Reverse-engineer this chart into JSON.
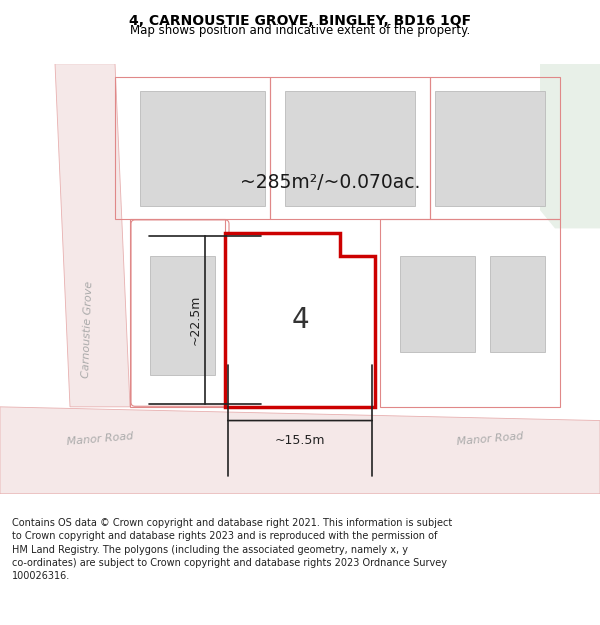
{
  "title": "4, CARNOUSTIE GROVE, BINGLEY, BD16 1QF",
  "subtitle": "Map shows position and indicative extent of the property.",
  "footer": "Contains OS data © Crown copyright and database right 2021. This information is subject to Crown copyright and database rights 2023 and is reproduced with the permission of HM Land Registry. The polygons (including the associated geometry, namely x, y co-ordinates) are subject to Crown copyright and database rights 2023 Ordnance Survey 100026316.",
  "area_text": "~285m²/~0.070ac.",
  "house_number": "4",
  "dim_width": "~15.5m",
  "dim_height": "~22.5m",
  "road_label_cg": "Carnoustie Grove",
  "road_label_mr1": "Manor Road",
  "road_label_mr2": "Manor Road",
  "plot_color": "#cc0000",
  "dim_color": "#222222",
  "road_fill": "#f5e8e8",
  "road_edge": "#e8b0b0",
  "building_fill": "#d8d8d8",
  "building_edge": "#bbbbbb",
  "plot_bound_color": "#e08888",
  "area_text_color": "#1a1a1a",
  "map_bg": "#f8f8f8",
  "green_area": "#e8f0e8"
}
